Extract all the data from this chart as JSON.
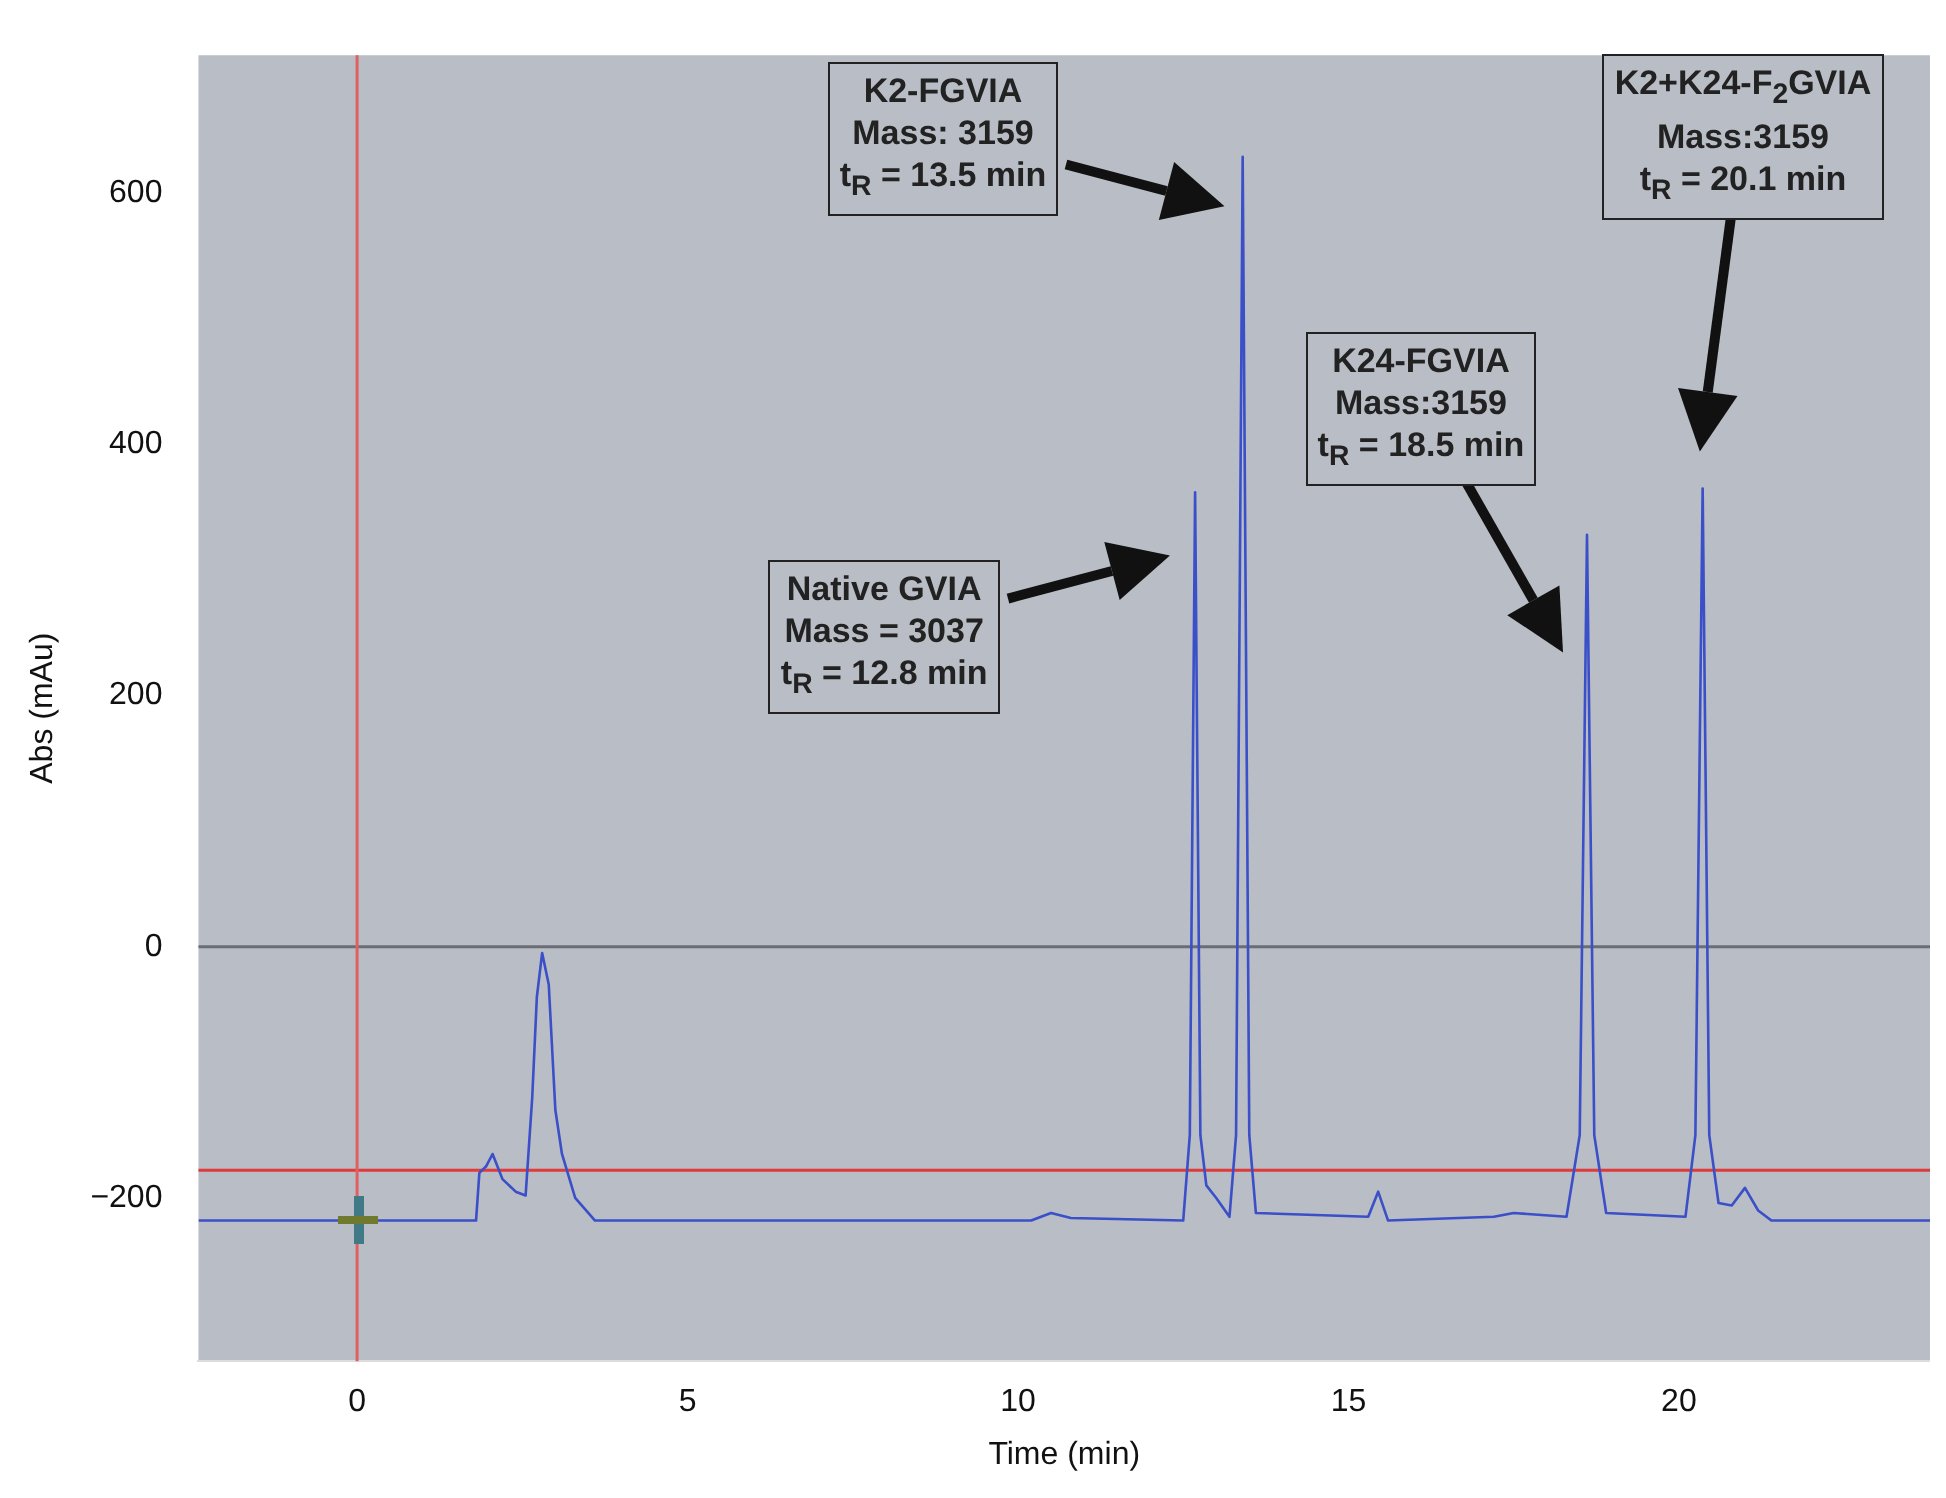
{
  "chart_data": {
    "type": "line",
    "xlabel": "Time (min)",
    "ylabel": "Abs (mAu)",
    "xlim": [
      -2.4,
      23.8
    ],
    "xticks": [
      0,
      5,
      10,
      15,
      20
    ],
    "ylim": [
      -330,
      710
    ],
    "yticks": [
      -200,
      0,
      200,
      400,
      600
    ],
    "grid": false,
    "legend": false,
    "marker": "none",
    "line_style": "solid",
    "series": [
      {
        "color": "#3a4fc8",
        "x": [
          -2.4,
          1.8,
          1.85,
          1.95,
          2.05,
          2.2,
          2.4,
          2.55,
          2.65,
          2.72,
          2.8,
          2.9,
          3.0,
          3.1,
          3.3,
          3.6,
          10.2,
          10.5,
          10.8,
          12.5,
          12.6,
          12.68,
          12.76,
          12.85,
          13.0,
          13.2,
          13.3,
          13.4,
          13.5,
          13.6,
          15.3,
          15.45,
          15.6,
          17.2,
          17.5,
          18.3,
          18.5,
          18.61,
          18.72,
          18.9,
          20.1,
          20.25,
          20.36,
          20.46,
          20.6,
          20.8,
          21.0,
          21.2,
          21.4,
          23.8
        ],
        "values": [
          -218,
          -218,
          -180,
          -175,
          -165,
          -185,
          -195,
          -198,
          -120,
          -40,
          -5,
          -30,
          -130,
          -165,
          -200,
          -218,
          -218,
          -212,
          -216,
          -218,
          -150,
          362,
          -150,
          -190,
          -200,
          -215,
          -150,
          629,
          -150,
          -212,
          -215,
          -195,
          -218,
          -215,
          -212,
          -215,
          -150,
          328,
          -150,
          -212,
          -215,
          -150,
          365,
          -150,
          -204,
          -206,
          -192,
          -210,
          -218,
          -218
        ]
      }
    ],
    "ref_lines": [
      {
        "axis": "y",
        "value": 0,
        "color": "#6a6e74"
      },
      {
        "axis": "y",
        "value": -178,
        "color": "#e03a3a"
      },
      {
        "axis": "x",
        "value": 0,
        "color": "#e06060"
      }
    ],
    "annotations": [
      "Native GVIA\nMass = 3037\nt$_{R}$ = 12.8 min",
      "K2-FGVIA\nMass: 3159\nt$_{R}$ = 13.5 min",
      "K24-FGVIA\nMass:3159\nt$_{R}$ = 18.5 min",
      "K2+K24-F$_{2}$GVIA\nMass:3159\nt$_{R}$ = 20.1 min"
    ]
  }
}
